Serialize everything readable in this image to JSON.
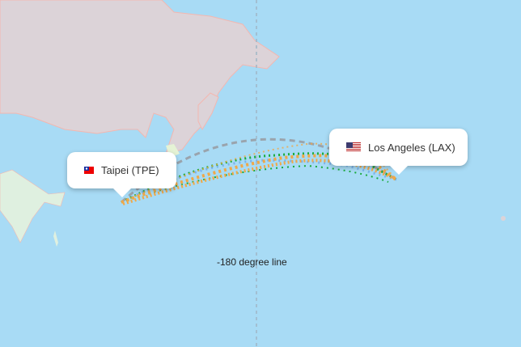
{
  "origin": {
    "label": "Taipei (TPE)",
    "flag_icon": "taiwan-flag-icon"
  },
  "destination": {
    "label": "Los Angeles (LAX)",
    "flag_icon": "usa-flag-icon"
  },
  "dateline": {
    "label": "-180 degree line"
  },
  "colors": {
    "ocean": "#a8dbf5",
    "land": "#dcd3d8",
    "border": "#f3b7b0",
    "route_orange": "#f0a848",
    "route_green": "#1aab3c",
    "route_blue": "#6fa8e8",
    "great_circle": "#9aa4ad"
  }
}
